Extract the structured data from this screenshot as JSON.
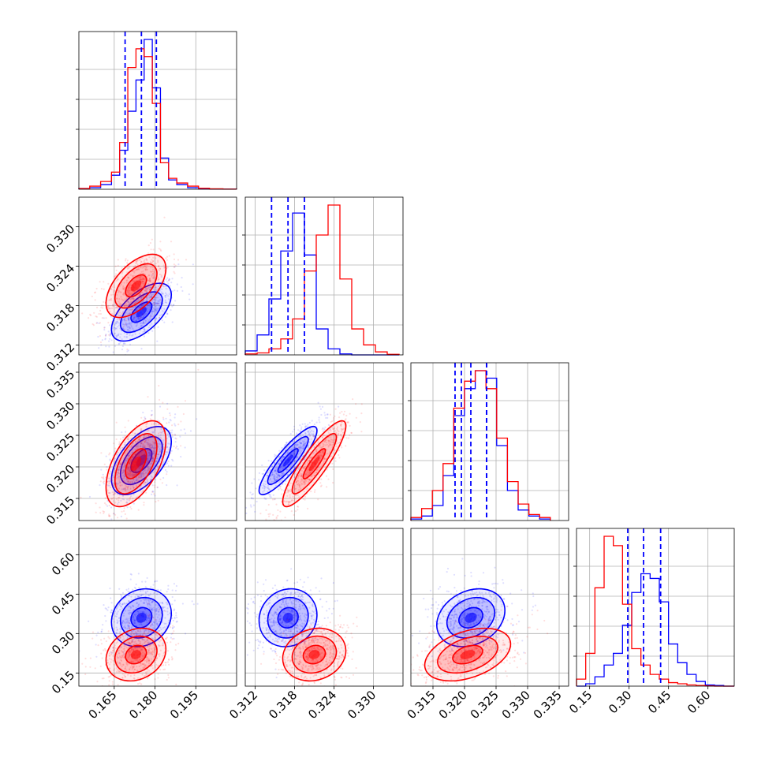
{
  "chart_data": {
    "type": "corner",
    "grid": true,
    "colors": {
      "series_a": "#0000ff",
      "series_b": "#ff0000",
      "grid": "#b0b0b0"
    },
    "series": [
      {
        "color": "#0000ff",
        "means": [
          0.175,
          0.317,
          0.321,
          0.36
        ],
        "sds": [
          0.0055,
          0.0022,
          0.0027,
          0.055
        ],
        "correlations": {
          "1-0": 0.6,
          "2-0": 0.55,
          "2-1": 0.88,
          "3-0": 0.15,
          "3-1": 0.1,
          "3-2": 0.25
        }
      },
      {
        "color": "#ff0000",
        "means": [
          0.173,
          0.321,
          0.3205,
          0.22
        ],
        "sds": [
          0.0055,
          0.0024,
          0.0034,
          0.05
        ],
        "correlations": {
          "1-0": 0.55,
          "2-0": 0.55,
          "2-1": 0.88,
          "3-0": 0.2,
          "3-1": 0.15,
          "3-2": 0.4
        }
      }
    ],
    "quantiles": [
      [
        0.169,
        0.175,
        0.1805
      ],
      [
        0.3145,
        0.317,
        0.3195
      ],
      [
        0.3185,
        0.321,
        0.3235
      ],
      [
        0.295,
        0.355,
        0.42
      ]
    ],
    "quantile_extra": [
      null,
      null,
      [
        0.3195,
        0.3235
      ],
      null
    ],
    "histograms": [
      {
        "bins": [
          0.152,
          0.156,
          0.16,
          0.164,
          0.167,
          0.17,
          0.173,
          0.176,
          0.179,
          0.182,
          0.185,
          0.188,
          0.192,
          0.196,
          0.2,
          0.205,
          0.21
        ],
        "counts": [
          [
            0.5,
            1,
            3,
            9,
            25,
            50,
            70,
            96,
            65,
            20,
            6,
            3,
            1,
            0.5,
            0.2,
            0.1
          ],
          [
            0.5,
            2,
            5,
            11,
            30,
            78,
            90,
            85,
            55,
            17,
            7,
            4,
            2,
            0.7,
            0.3,
            0.1
          ]
        ]
      },
      {
        "bins": [
          0.3105,
          0.3123,
          0.3141,
          0.3159,
          0.3177,
          0.3195,
          0.3213,
          0.3231,
          0.3249,
          0.3267,
          0.3285,
          0.3303,
          0.3321,
          0.3339
        ],
        "counts": [
          [
            2,
            10,
            28,
            52,
            71,
            50,
            13,
            3,
            0.5,
            0,
            0,
            0,
            0
          ],
          [
            0.5,
            1,
            3,
            8,
            18,
            42,
            60,
            75,
            38,
            13,
            5,
            1.5,
            0.3
          ]
        ]
      },
      {
        "bins": [
          0.3115,
          0.3132,
          0.3149,
          0.3166,
          0.3183,
          0.32,
          0.3217,
          0.3234,
          0.3251,
          0.3268,
          0.3285,
          0.3302,
          0.3319,
          0.3336
        ],
        "counts": [
          [
            1,
            3,
            10,
            30,
            70,
            88,
            100,
            95,
            50,
            20,
            7,
            3,
            1
          ],
          [
            2,
            8,
            20,
            38,
            75,
            93,
            100,
            88,
            55,
            26,
            11,
            4,
            2
          ]
        ]
      },
      {
        "bins": [
          0.1,
          0.135,
          0.17,
          0.205,
          0.24,
          0.275,
          0.31,
          0.345,
          0.38,
          0.415,
          0.45,
          0.485,
          0.52,
          0.555,
          0.59,
          0.625,
          0.66,
          0.7
        ],
        "counts": [
          [
            0,
            1,
            4,
            9,
            14,
            26,
            40,
            48,
            46,
            36,
            18,
            10,
            5,
            2,
            0.5,
            0.3,
            0
          ],
          [
            3,
            14,
            42,
            64,
            60,
            35,
            16,
            9,
            5,
            3,
            1.5,
            1,
            0.5,
            0.3,
            0.1,
            0,
            0
          ]
        ]
      }
    ],
    "axes": [
      {
        "range": [
          0.152,
          0.21
        ],
        "ticks": [
          0.165,
          0.18,
          0.195
        ],
        "tick_labels": [
          "0.165",
          "0.180",
          "0.195"
        ]
      },
      {
        "range": [
          0.3105,
          0.3345
        ],
        "ticks": [
          0.312,
          0.318,
          0.324,
          0.33
        ],
        "tick_labels": [
          "0.312",
          "0.318",
          "0.324",
          "0.330"
        ]
      },
      {
        "range": [
          0.3115,
          0.3365
        ],
        "ticks": [
          0.315,
          0.32,
          0.325,
          0.33,
          0.335
        ],
        "tick_labels": [
          "0.315",
          "0.320",
          "0.325",
          "0.330",
          "0.335"
        ]
      },
      {
        "range": [
          0.1,
          0.7
        ],
        "ticks": [
          0.15,
          0.3,
          0.45,
          0.6
        ],
        "tick_labels": [
          "0.15",
          "0.30",
          "0.45",
          "0.60"
        ]
      }
    ]
  }
}
